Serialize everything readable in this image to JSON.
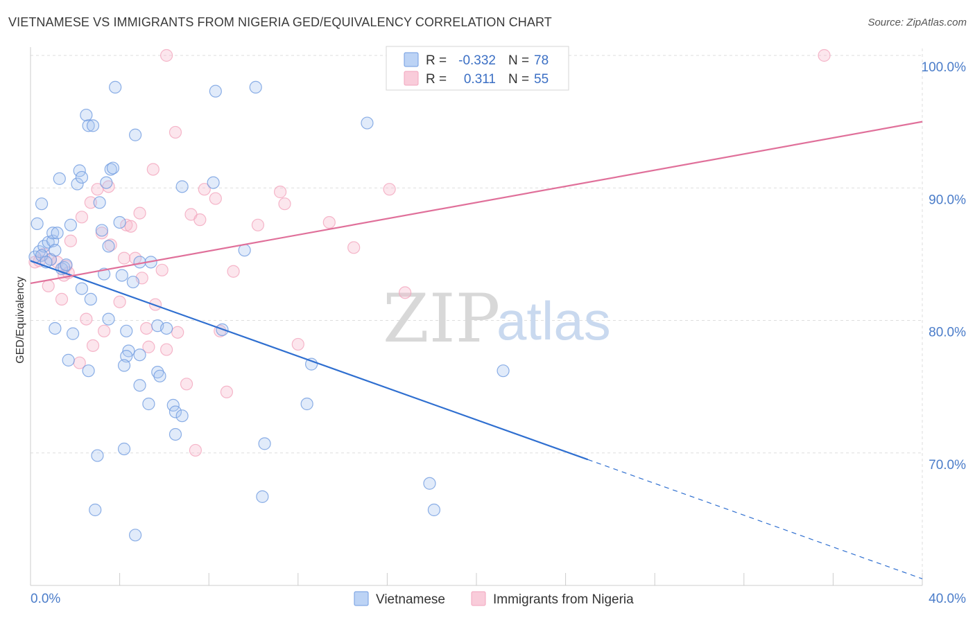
{
  "title": "VIETNAMESE VS IMMIGRANTS FROM NIGERIA GED/EQUIVALENCY CORRELATION CHART",
  "source": "Source: ZipAtlas.com",
  "watermark": {
    "part1": "ZIP",
    "part2": "atlas"
  },
  "colors": {
    "blue": "#6f9be0",
    "blue_line": "#2f6fd0",
    "pink": "#f2a5bd",
    "pink_line": "#e0709a",
    "grid": "#dddddd",
    "axis_text": "#4a7cc9"
  },
  "legend": {
    "r_label": "R =",
    "n_label": "N =",
    "rows": [
      {
        "r": "-0.332",
        "n": "78"
      },
      {
        "r": "0.311",
        "n": "55"
      }
    ]
  },
  "chart_data": {
    "type": "scatter",
    "title": "VIETNAMESE VS IMMIGRANTS FROM NIGERIA GED/EQUIVALENCY CORRELATION CHART",
    "xlabel": "",
    "ylabel": "GED/Equivalency",
    "xlim": [
      0,
      40
    ],
    "ylim": [
      60,
      100
    ],
    "x_tick_labels": [
      "0.0%",
      "40.0%"
    ],
    "y_ticks": [
      70,
      80,
      90,
      100
    ],
    "y_tick_labels": [
      "70.0%",
      "80.0%",
      "90.0%",
      "100.0%"
    ],
    "grid": true,
    "legend_position": "top-center",
    "series": [
      {
        "name": "Vietnamese",
        "r": -0.332,
        "n": 78,
        "trend": {
          "x1": 0,
          "y1": 84.5,
          "x2": 25,
          "y2": 69.5,
          "dashed_to": {
            "x": 40,
            "y": 60.5
          }
        },
        "points": [
          [
            0.2,
            84.8
          ],
          [
            0.4,
            85.2
          ],
          [
            0.3,
            87.3
          ],
          [
            0.5,
            88.8
          ],
          [
            0.6,
            85.6
          ],
          [
            0.8,
            85.9
          ],
          [
            0.9,
            84.6
          ],
          [
            1.0,
            86.0
          ],
          [
            1.0,
            86.6
          ],
          [
            0.5,
            84.9
          ],
          [
            0.7,
            84.4
          ],
          [
            1.1,
            85.3
          ],
          [
            1.4,
            83.9
          ],
          [
            1.5,
            84.0
          ],
          [
            1.2,
            86.6
          ],
          [
            1.6,
            84.2
          ],
          [
            1.8,
            87.2
          ],
          [
            2.1,
            90.3
          ],
          [
            2.2,
            91.3
          ],
          [
            2.3,
            90.8
          ],
          [
            2.5,
            95.5
          ],
          [
            2.6,
            94.7
          ],
          [
            2.8,
            94.7
          ],
          [
            3.1,
            88.9
          ],
          [
            3.2,
            86.8
          ],
          [
            3.6,
            91.4
          ],
          [
            3.7,
            91.5
          ],
          [
            3.8,
            97.6
          ],
          [
            4.0,
            87.4
          ],
          [
            3.4,
            90.4
          ],
          [
            3.5,
            85.6
          ],
          [
            3.3,
            83.5
          ],
          [
            4.1,
            83.4
          ],
          [
            4.7,
            94.0
          ],
          [
            4.9,
            84.4
          ],
          [
            4.6,
            82.9
          ],
          [
            1.3,
            90.7
          ],
          [
            1.1,
            79.4
          ],
          [
            1.9,
            79.0
          ],
          [
            1.7,
            77.0
          ],
          [
            2.3,
            82.4
          ],
          [
            2.6,
            76.2
          ],
          [
            2.7,
            81.6
          ],
          [
            3.5,
            80.1
          ],
          [
            4.3,
            79.2
          ],
          [
            4.4,
            77.7
          ],
          [
            4.3,
            77.3
          ],
          [
            4.2,
            76.6
          ],
          [
            4.9,
            77.4
          ],
          [
            5.7,
            76.1
          ],
          [
            5.8,
            75.8
          ],
          [
            4.9,
            75.1
          ],
          [
            5.3,
            73.7
          ],
          [
            5.7,
            79.6
          ],
          [
            6.1,
            79.4
          ],
          [
            6.4,
            73.6
          ],
          [
            6.5,
            73.1
          ],
          [
            6.8,
            72.8
          ],
          [
            6.5,
            71.4
          ],
          [
            6.8,
            90.1
          ],
          [
            8.3,
            97.3
          ],
          [
            8.2,
            90.4
          ],
          [
            8.6,
            79.3
          ],
          [
            9.6,
            85.3
          ],
          [
            10.1,
            97.6
          ],
          [
            10.5,
            70.7
          ],
          [
            12.4,
            73.7
          ],
          [
            12.6,
            76.7
          ],
          [
            3.0,
            69.8
          ],
          [
            4.2,
            70.3
          ],
          [
            2.9,
            65.7
          ],
          [
            4.7,
            63.8
          ],
          [
            10.4,
            66.7
          ],
          [
            15.1,
            94.9
          ],
          [
            17.9,
            67.7
          ],
          [
            18.1,
            65.7
          ],
          [
            21.2,
            76.2
          ],
          [
            5.4,
            84.4
          ]
        ]
      },
      {
        "name": "Immigrants from Nigeria",
        "r": 0.311,
        "n": 55,
        "trend": {
          "x1": 0,
          "y1": 82.8,
          "x2": 40,
          "y2": 95.0
        },
        "points": [
          [
            0.2,
            84.4
          ],
          [
            0.4,
            84.5
          ],
          [
            0.6,
            85.0
          ],
          [
            0.9,
            84.6
          ],
          [
            0.8,
            82.6
          ],
          [
            1.2,
            84.4
          ],
          [
            1.5,
            83.4
          ],
          [
            1.6,
            84.1
          ],
          [
            1.7,
            83.6
          ],
          [
            1.4,
            81.6
          ],
          [
            2.2,
            76.8
          ],
          [
            2.5,
            80.1
          ],
          [
            2.8,
            78.1
          ],
          [
            3.0,
            89.9
          ],
          [
            3.2,
            86.6
          ],
          [
            3.3,
            79.2
          ],
          [
            3.6,
            85.7
          ],
          [
            3.5,
            90.1
          ],
          [
            2.7,
            88.9
          ],
          [
            2.3,
            87.8
          ],
          [
            4.0,
            81.4
          ],
          [
            4.2,
            84.7
          ],
          [
            4.3,
            87.2
          ],
          [
            4.5,
            87.1
          ],
          [
            4.7,
            84.7
          ],
          [
            4.9,
            88.1
          ],
          [
            5.0,
            83.2
          ],
          [
            5.2,
            79.4
          ],
          [
            5.3,
            78.0
          ],
          [
            5.6,
            81.2
          ],
          [
            5.9,
            83.8
          ],
          [
            6.1,
            77.8
          ],
          [
            6.5,
            94.2
          ],
          [
            5.5,
            91.4
          ],
          [
            6.6,
            79.1
          ],
          [
            7.0,
            75.2
          ],
          [
            7.2,
            88.0
          ],
          [
            7.4,
            70.2
          ],
          [
            7.6,
            87.6
          ],
          [
            7.8,
            89.9
          ],
          [
            8.3,
            89.2
          ],
          [
            8.5,
            79.2
          ],
          [
            8.8,
            74.6
          ],
          [
            9.1,
            83.7
          ],
          [
            10.2,
            87.2
          ],
          [
            11.2,
            89.7
          ],
          [
            11.4,
            88.8
          ],
          [
            12.0,
            78.2
          ],
          [
            13.4,
            87.4
          ],
          [
            14.5,
            85.5
          ],
          [
            16.1,
            89.9
          ],
          [
            16.8,
            82.1
          ],
          [
            6.1,
            100.0
          ],
          [
            35.6,
            100.0
          ],
          [
            1.8,
            86.0
          ]
        ]
      }
    ]
  },
  "bottom_legend": [
    {
      "label": "Vietnamese"
    },
    {
      "label": "Immigrants from Nigeria"
    }
  ]
}
